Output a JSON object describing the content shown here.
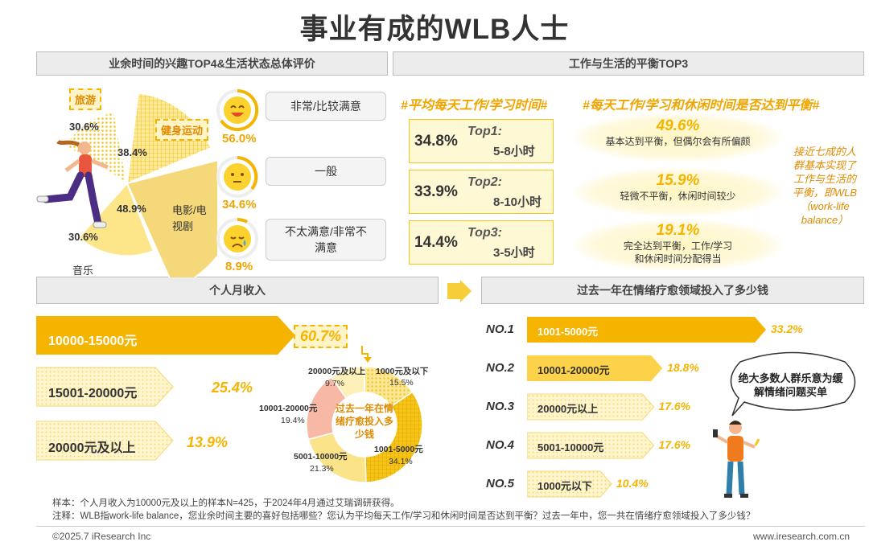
{
  "title": "事业有成的WLB人士",
  "hobby_header": "业余时间的兴趣TOP4&生活状态总体评价",
  "balance_header": "工作与生活的平衡TOP3",
  "hobbies": [
    {
      "label": "旅游",
      "value": "30.6%"
    },
    {
      "label": "健身运动",
      "value": "38.4%"
    },
    {
      "label": "电影/电视剧",
      "value": "48.9%"
    },
    {
      "label": "音乐",
      "value": "30.6%"
    }
  ],
  "moods": [
    {
      "label": "非常/比较满意",
      "value": "56.0%",
      "icon": "happy-face-icon"
    },
    {
      "label": "一般",
      "value": "34.6%",
      "icon": "neutral-face-icon"
    },
    {
      "label": "不太满意/非常不满意",
      "value": "8.9%",
      "icon": "sad-face-icon"
    }
  ],
  "work_hours_title": "#平均每天工作/学习时间#",
  "work_hours": [
    {
      "rank": "Top1:",
      "range": "5-8小时",
      "value": "34.8%"
    },
    {
      "rank": "Top2:",
      "range": "8-10小时",
      "value": "33.9%"
    },
    {
      "rank": "Top3:",
      "range": "3-5小时",
      "value": "14.4%"
    }
  ],
  "balance_title": "#每天工作/学习和休闲时间是否达到平衡#",
  "balance": [
    {
      "value": "49.6%",
      "text": "基本达到平衡，但偶尔会有所偏颇"
    },
    {
      "value": "15.9%",
      "text": "轻微不平衡，休闲时间较少"
    },
    {
      "value": "19.1%",
      "text": "完全达到平衡，工作/学习和休闲时间分配得当"
    }
  ],
  "balance_note": "接近七成的人群基本实现了工作与生活的平衡，即WLB（work-life balance）",
  "income_header": "个人月收入",
  "income": [
    {
      "label": "10000-15000元",
      "value": "60.7%",
      "share": 0.607
    },
    {
      "label": "15001-20000元",
      "value": "25.4%",
      "share": 0.254
    },
    {
      "label": "20000元及以上",
      "value": "13.9%",
      "share": 0.139
    }
  ],
  "spend_header": "过去一年在情绪疗愈领域投入了多少钱",
  "donut_center": "过去一年在情绪疗愈投入多少钱",
  "chart_data": [
    {
      "type": "pie",
      "title": "",
      "categories": [
        "旅游",
        "健身运动",
        "电影/电视剧",
        "音乐"
      ],
      "values": [
        30.6,
        38.4,
        48.9,
        30.6
      ]
    },
    {
      "type": "bar",
      "title": "个人月收入",
      "categories": [
        "10000-15000元",
        "15001-20000元",
        "20000元及以上"
      ],
      "values": [
        60.7,
        25.4,
        13.9
      ]
    },
    {
      "type": "pie",
      "title": "过去一年在情绪疗愈投入多少钱",
      "categories": [
        "1000元及以下",
        "1001-5000元",
        "5001-10000元",
        "10001-20000元",
        "20000元及以上"
      ],
      "values": [
        15.5,
        34.1,
        21.3,
        19.4,
        9.7
      ],
      "colors": [
        "#f5c518",
        "#f0ad00",
        "#f8d862",
        "#f7b9a6",
        "#fbe79a"
      ]
    },
    {
      "type": "bar",
      "title": "过去一年在情绪疗愈领域投入了多少钱",
      "categories": [
        "1001-5000元",
        "10001-20000元",
        "20000元以上",
        "5001-10000元",
        "1000元以下"
      ],
      "ranks": [
        "NO.1",
        "NO.2",
        "NO.3",
        "NO.4",
        "NO.5"
      ],
      "values": [
        33.2,
        18.8,
        17.6,
        17.6,
        10.4
      ]
    }
  ],
  "donut_labels": [
    {
      "label": "1000元及以下",
      "value": "15.5%"
    },
    {
      "label": "1001-5000元",
      "value": "34.1%"
    },
    {
      "label": "5001-10000元",
      "value": "21.3%"
    },
    {
      "label": "10001-20000元",
      "value": "19.4%"
    },
    {
      "label": "20000元及以上",
      "value": "9.7%"
    }
  ],
  "spend_rank": [
    {
      "rank": "NO.1",
      "label": "1001-5000元",
      "value": "33.2%"
    },
    {
      "rank": "NO.2",
      "label": "10001-20000元",
      "value": "18.8%"
    },
    {
      "rank": "NO.3",
      "label": "20000元以上",
      "value": "17.6%"
    },
    {
      "rank": "NO.4",
      "label": "5001-10000元",
      "value": "17.6%"
    },
    {
      "rank": "NO.5",
      "label": "1000元以下",
      "value": "10.4%"
    }
  ],
  "speech_bubble": "绝大多数人群乐意为缓解情绪问题买单",
  "note_sample": "样本：个人月收入为10000元及以上的样本N=425，于2024年4月通过艾瑞调研获得。",
  "note_explain": "注释：WLB指work-life balance，您业余时间主要的喜好包括哪些？您认为平均每天工作/学习和休闲时间是否达到平衡？过去一年中，您一共在情绪疗愈领域投入了多少钱？",
  "copyright": "©2025.7 iResearch Inc",
  "website": "www.iresearch.com.cn",
  "colors": {
    "accent": "#f5b400",
    "light": "#fff4c8",
    "header_bg": "#ececec",
    "donut_pink": "#f7b9a6"
  }
}
